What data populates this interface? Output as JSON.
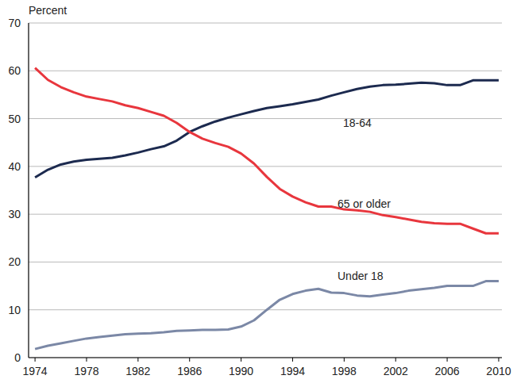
{
  "chart_data": {
    "type": "line",
    "y_label": "Percent",
    "x": [
      1974,
      1975,
      1976,
      1977,
      1978,
      1979,
      1980,
      1981,
      1982,
      1983,
      1984,
      1985,
      1986,
      1987,
      1988,
      1989,
      1990,
      1991,
      1992,
      1993,
      1994,
      1995,
      1996,
      1997,
      1998,
      1999,
      2000,
      2001,
      2002,
      2003,
      2004,
      2005,
      2006,
      2007,
      2008,
      2009,
      2010
    ],
    "series": [
      {
        "name": "18-64",
        "color": "#1c2a4f",
        "values": [
          37.7,
          39.3,
          40.4,
          41.0,
          41.4,
          41.6,
          41.8,
          42.3,
          42.9,
          43.6,
          44.2,
          45.4,
          47.2,
          48.4,
          49.4,
          50.2,
          50.9,
          51.6,
          52.2,
          52.6,
          53.0,
          53.5,
          54.0,
          54.8,
          55.5,
          56.2,
          56.7,
          57.0,
          57.1,
          57.3,
          57.5,
          57.4,
          57.0,
          57.0,
          58.0,
          58.0,
          58.0
        ]
      },
      {
        "name": "65 or older",
        "color": "#e8363d",
        "values": [
          60.6,
          58.1,
          56.6,
          55.5,
          54.6,
          54.1,
          53.6,
          52.8,
          52.2,
          51.4,
          50.6,
          49.1,
          47.2,
          45.8,
          44.9,
          44.1,
          42.7,
          40.6,
          37.8,
          35.3,
          33.7,
          32.5,
          31.6,
          31.6,
          31.0,
          30.8,
          30.5,
          29.8,
          29.4,
          28.9,
          28.4,
          28.1,
          28.0,
          28.0,
          27.0,
          26.0,
          26.0
        ]
      },
      {
        "name": "Under 18",
        "color": "#7b88a6",
        "values": [
          1.8,
          2.5,
          3.0,
          3.5,
          4.0,
          4.3,
          4.6,
          4.9,
          5.0,
          5.1,
          5.3,
          5.6,
          5.7,
          5.8,
          5.8,
          5.9,
          6.5,
          7.8,
          10.0,
          12.1,
          13.3,
          14.0,
          14.4,
          13.6,
          13.5,
          13.0,
          12.8,
          13.2,
          13.5,
          14.0,
          14.3,
          14.6,
          15.0,
          15.0,
          15.0,
          16.0,
          16.0
        ]
      }
    ],
    "xlim": [
      1973.5,
      2010.25
    ],
    "xticks": [
      1974,
      1978,
      1982,
      1986,
      1990,
      1994,
      1998,
      2002,
      2006,
      2010
    ],
    "ylim": [
      0,
      70
    ],
    "yticks": [
      0,
      10,
      20,
      30,
      40,
      50,
      60,
      70
    ],
    "grid": true
  }
}
